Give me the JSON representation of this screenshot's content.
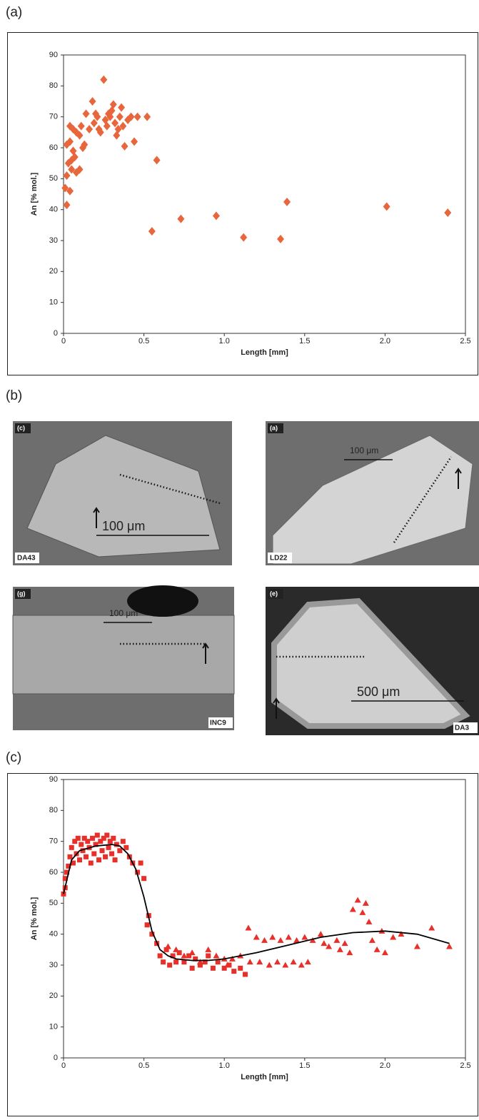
{
  "panels": [
    "(a)",
    "(b)",
    "(c)"
  ],
  "micrographs": [
    {
      "tag": "(c)",
      "sample": "DA43",
      "scale": "100 μm"
    },
    {
      "tag": "(a)",
      "sample": "LD22",
      "scale": "100 μm"
    },
    {
      "tag": "(g)",
      "sample": "INC9",
      "scale": "100 μm"
    },
    {
      "tag": "(e)",
      "sample": "DA3",
      "scale": "500 μm"
    }
  ],
  "chart_data": [
    {
      "type": "scatter",
      "xlabel": "Length [mm]",
      "ylabel": "An [% mol.]",
      "xlim": [
        0,
        2.5
      ],
      "ylim": [
        0,
        90
      ],
      "xticks": [
        0,
        0.5,
        {
          "value": 1,
          "label": "1.0"
        },
        1.5,
        {
          "value": 2,
          "label": "2.0"
        },
        2.5
      ],
      "yticks": [
        0,
        10,
        20,
        30,
        40,
        50,
        60,
        70,
        80,
        90
      ],
      "series": [
        {
          "color": "#e8663c",
          "marker": "diamond",
          "x": [
            0.02,
            0.01,
            0.02,
            0.04,
            0.03,
            0.05,
            0.02,
            0.04,
            0.06,
            0.07,
            0.05,
            0.08,
            0.1,
            0.06,
            0.04,
            0.08,
            0.1,
            0.12,
            0.13,
            0.11,
            0.14,
            0.16,
            0.18,
            0.19,
            0.2,
            0.21,
            0.22,
            0.23,
            0.25,
            0.26,
            0.27,
            0.28,
            0.29,
            0.3,
            0.31,
            0.32,
            0.33,
            0.34,
            0.35,
            0.36,
            0.37,
            0.38,
            0.4,
            0.42,
            0.44,
            0.46,
            0.52,
            0.55,
            0.58,
            0.73,
            0.95,
            1.12,
            1.35,
            1.39,
            2.01,
            2.39
          ],
          "values": [
            41.5,
            47,
            51,
            46,
            55,
            56,
            61,
            62,
            59,
            57,
            53,
            52,
            53,
            66,
            67,
            65,
            64,
            60,
            61,
            67,
            71,
            66,
            75,
            68,
            71,
            70,
            66,
            65,
            82,
            69,
            67,
            71,
            70,
            72,
            74,
            68,
            64,
            66,
            70,
            73,
            67,
            60.5,
            69,
            70,
            62,
            70,
            70,
            33,
            56,
            37,
            38,
            31,
            30.5,
            42.5,
            41,
            39
          ]
        }
      ]
    },
    {
      "type": "scatter",
      "xlabel": "Length [mm]",
      "ylabel": "An [% mol.]",
      "xlim": [
        0,
        2.5
      ],
      "ylim": [
        0,
        90
      ],
      "xticks": [
        0,
        0.5,
        {
          "value": 1,
          "label": "1.0"
        },
        1.5,
        {
          "value": 2,
          "label": "2.0"
        },
        2.5
      ],
      "yticks": [
        0,
        10,
        20,
        30,
        40,
        50,
        60,
        70,
        80,
        90
      ],
      "series": [
        {
          "color": "#e8302a",
          "marker": "square",
          "x": [
            0,
            0.01,
            0.01,
            0.02,
            0.03,
            0.04,
            0.05,
            0.06,
            0.07,
            0.08,
            0.09,
            0.1,
            0.11,
            0.12,
            0.13,
            0.14,
            0.15,
            0.16,
            0.17,
            0.18,
            0.19,
            0.2,
            0.21,
            0.22,
            0.23,
            0.24,
            0.25,
            0.26,
            0.27,
            0.28,
            0.29,
            0.3,
            0.31,
            0.32,
            0.33,
            0.35,
            0.37,
            0.39,
            0.41,
            0.43,
            0.46,
            0.48,
            0.5,
            0.52,
            0.53,
            0.55,
            0.58,
            0.6,
            0.62,
            0.64,
            0.66,
            0.68,
            0.7,
            0.72,
            0.75,
            0.78,
            0.8,
            0.82,
            0.85,
            0.88,
            0.9,
            0.93,
            0.96,
            1,
            1.03,
            1.06,
            1.1,
            1.13
          ],
          "values": [
            53,
            58,
            55,
            60,
            62,
            65,
            68,
            63,
            70,
            66,
            71,
            64,
            69,
            67,
            71,
            65,
            70,
            68,
            63,
            71,
            66,
            69,
            72,
            64,
            70,
            67,
            71,
            65,
            72,
            68,
            70,
            66,
            71,
            64,
            69,
            67,
            70,
            68,
            65,
            63,
            60,
            63,
            58,
            43,
            46,
            40,
            37,
            33,
            31,
            35,
            30,
            33,
            31,
            34,
            31,
            33,
            29,
            32,
            30,
            31,
            33,
            29,
            31,
            29,
            30,
            28,
            29,
            27
          ]
        },
        {
          "color": "#e8302a",
          "marker": "triangle",
          "x": [
            0.65,
            0.7,
            0.75,
            0.8,
            0.85,
            0.9,
            0.95,
            1,
            1.02,
            1.05,
            1.1,
            1.15,
            1.16,
            1.2,
            1.22,
            1.25,
            1.28,
            1.3,
            1.33,
            1.35,
            1.38,
            1.4,
            1.43,
            1.45,
            1.48,
            1.5,
            1.52,
            1.55,
            1.6,
            1.62,
            1.65,
            1.7,
            1.72,
            1.75,
            1.78,
            1.8,
            1.83,
            1.86,
            1.88,
            1.9,
            1.92,
            1.95,
            1.98,
            2,
            2.05,
            2.1,
            2.2,
            2.29,
            2.4
          ],
          "values": [
            36,
            35,
            33,
            34,
            31,
            35,
            33,
            32,
            30,
            32,
            33,
            42,
            31,
            39,
            31,
            38,
            30,
            39,
            31,
            38,
            30,
            39,
            31,
            38,
            30,
            39,
            31,
            38,
            40,
            37,
            36,
            38,
            35,
            37,
            34,
            48,
            51,
            47,
            50,
            44,
            38,
            35,
            41,
            34,
            39,
            40,
            36,
            42,
            36
          ]
        },
        {
          "color": "#000000",
          "marker": "line",
          "x": [
            0,
            0.05,
            0.1,
            0.2,
            0.3,
            0.35,
            0.4,
            0.45,
            0.5,
            0.55,
            0.6,
            0.65,
            0.7,
            0.8,
            0.9,
            1,
            1.2,
            1.4,
            1.6,
            1.8,
            2,
            2.2,
            2.4
          ],
          "values": [
            53,
            64,
            67,
            68.5,
            69,
            68.5,
            66,
            61,
            52,
            41,
            35,
            33,
            32,
            31.5,
            31.5,
            32,
            34,
            36.5,
            39,
            40.5,
            41,
            40,
            37
          ]
        }
      ]
    }
  ]
}
